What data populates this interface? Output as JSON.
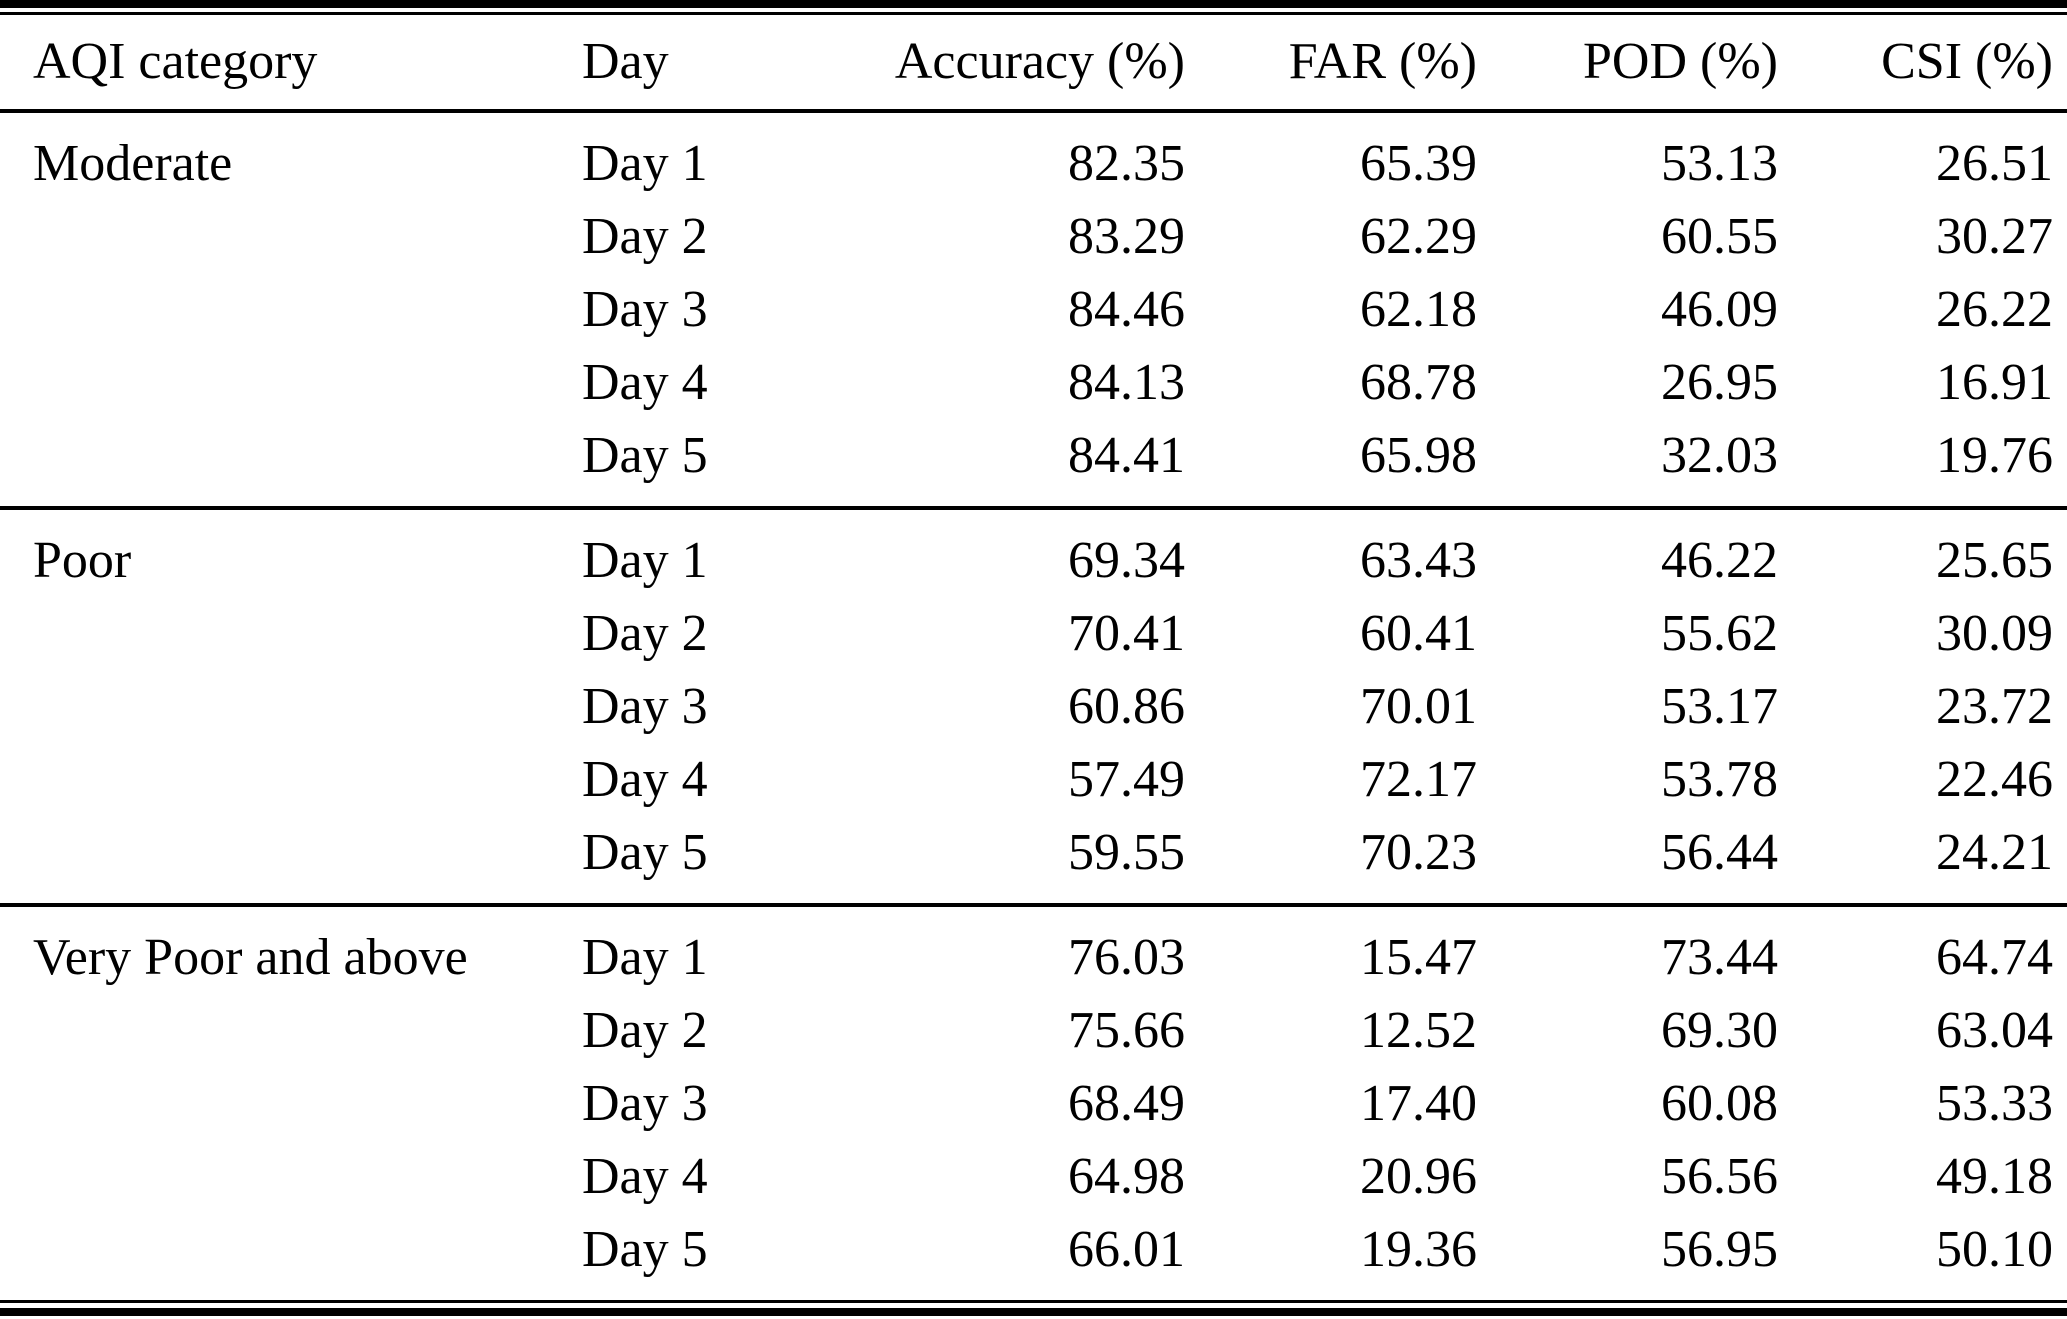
{
  "table": {
    "columns": [
      {
        "label": "AQI category"
      },
      {
        "label": "Day"
      },
      {
        "label": "Accuracy (%)"
      },
      {
        "label": "FAR (%)"
      },
      {
        "label": "POD (%)"
      },
      {
        "label": "CSI (%)"
      }
    ],
    "sections": [
      {
        "category": "Moderate",
        "rows": [
          {
            "day": "Day 1",
            "accuracy": "82.35",
            "far": "65.39",
            "pod": "53.13",
            "csi": "26.51"
          },
          {
            "day": "Day 2",
            "accuracy": "83.29",
            "far": "62.29",
            "pod": "60.55",
            "csi": "30.27"
          },
          {
            "day": "Day 3",
            "accuracy": "84.46",
            "far": "62.18",
            "pod": "46.09",
            "csi": "26.22"
          },
          {
            "day": "Day 4",
            "accuracy": "84.13",
            "far": "68.78",
            "pod": "26.95",
            "csi": "16.91"
          },
          {
            "day": "Day 5",
            "accuracy": "84.41",
            "far": "65.98",
            "pod": "32.03",
            "csi": "19.76"
          }
        ]
      },
      {
        "category": "Poor",
        "rows": [
          {
            "day": "Day 1",
            "accuracy": "69.34",
            "far": "63.43",
            "pod": "46.22",
            "csi": "25.65"
          },
          {
            "day": "Day 2",
            "accuracy": "70.41",
            "far": "60.41",
            "pod": "55.62",
            "csi": "30.09"
          },
          {
            "day": "Day 3",
            "accuracy": "60.86",
            "far": "70.01",
            "pod": "53.17",
            "csi": "23.72"
          },
          {
            "day": "Day 4",
            "accuracy": "57.49",
            "far": "72.17",
            "pod": "53.78",
            "csi": "22.46"
          },
          {
            "day": "Day 5",
            "accuracy": "59.55",
            "far": "70.23",
            "pod": "56.44",
            "csi": "24.21"
          }
        ]
      },
      {
        "category": "Very Poor and above",
        "rows": [
          {
            "day": "Day 1",
            "accuracy": "76.03",
            "far": "15.47",
            "pod": "73.44",
            "csi": "64.74"
          },
          {
            "day": "Day 2",
            "accuracy": "75.66",
            "far": "12.52",
            "pod": "69.30",
            "csi": "63.04"
          },
          {
            "day": "Day 3",
            "accuracy": "68.49",
            "far": "17.40",
            "pod": "60.08",
            "csi": "53.33"
          },
          {
            "day": "Day 4",
            "accuracy": "64.98",
            "far": "20.96",
            "pod": "56.56",
            "csi": "49.18"
          },
          {
            "day": "Day 5",
            "accuracy": "66.01",
            "far": "19.36",
            "pod": "56.95",
            "csi": "50.10"
          }
        ]
      }
    ],
    "rule_color": "#000000"
  }
}
